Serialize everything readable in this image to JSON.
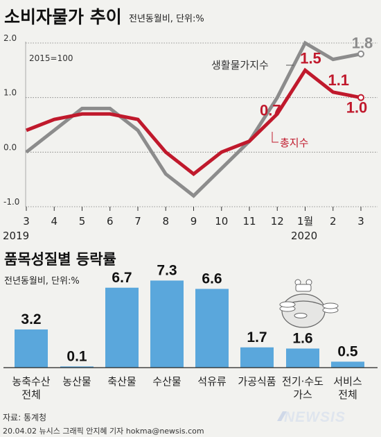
{
  "chart_data": [
    {
      "type": "line",
      "title": "소비자물가 추이",
      "subtitle": "전년동월비, 단위:%",
      "base_note": "2015=100",
      "x": [
        "3",
        "4",
        "5",
        "6",
        "7",
        "8",
        "9",
        "10",
        "11",
        "12",
        "1월",
        "2",
        "3"
      ],
      "year_labels": [
        "2019",
        "2020"
      ],
      "ylim": [
        -1.0,
        2.0
      ],
      "yticks": [
        "2.0",
        "1.0",
        "0.0",
        "-1.0"
      ],
      "series": [
        {
          "name": "생활물가지수",
          "color": "#8c8c8c",
          "values": [
            0.0,
            0.4,
            0.8,
            0.8,
            0.4,
            -0.4,
            -0.8,
            -0.3,
            0.2,
            1.0,
            2.0,
            1.7,
            1.8
          ],
          "labels": [
            {
              "i": 12,
              "text": "1.8"
            }
          ]
        },
        {
          "name": "총지수",
          "color": "#c0192c",
          "values": [
            0.4,
            0.6,
            0.7,
            0.7,
            0.6,
            0.0,
            -0.4,
            0.0,
            0.2,
            0.7,
            1.5,
            1.1,
            1.0
          ],
          "labels": [
            {
              "i": 9,
              "text": "0.7"
            },
            {
              "i": 10,
              "text": "1.5"
            },
            {
              "i": 11,
              "text": "1.1"
            },
            {
              "i": 12,
              "text": "1.0"
            }
          ]
        }
      ]
    },
    {
      "type": "bar",
      "title": "품목성질별 등락률",
      "subtitle": "전년동월비, 단위:%",
      "categories": [
        [
          "농축수산",
          "전체"
        ],
        [
          "농산물"
        ],
        [
          "축산물"
        ],
        [
          "수산물"
        ],
        [
          "석유류"
        ],
        [
          "가공식품"
        ],
        [
          "전기·수도",
          "가스"
        ],
        [
          "서비스",
          "전체"
        ]
      ],
      "values": [
        3.2,
        0.1,
        6.7,
        7.3,
        6.6,
        1.7,
        1.6,
        0.5
      ],
      "value_labels": [
        "3.2",
        "0.1",
        "6.7",
        "7.3",
        "6.6",
        "1.7",
        "1.6",
        "0.5"
      ],
      "bar_color": "#5aa7dc"
    }
  ],
  "footer": {
    "source": "자료: 통계청",
    "credit": "20.04.02 뉴시스 그래픽 안지혜 기자 hokma@newsis.com",
    "logo": "NEWSIS"
  }
}
